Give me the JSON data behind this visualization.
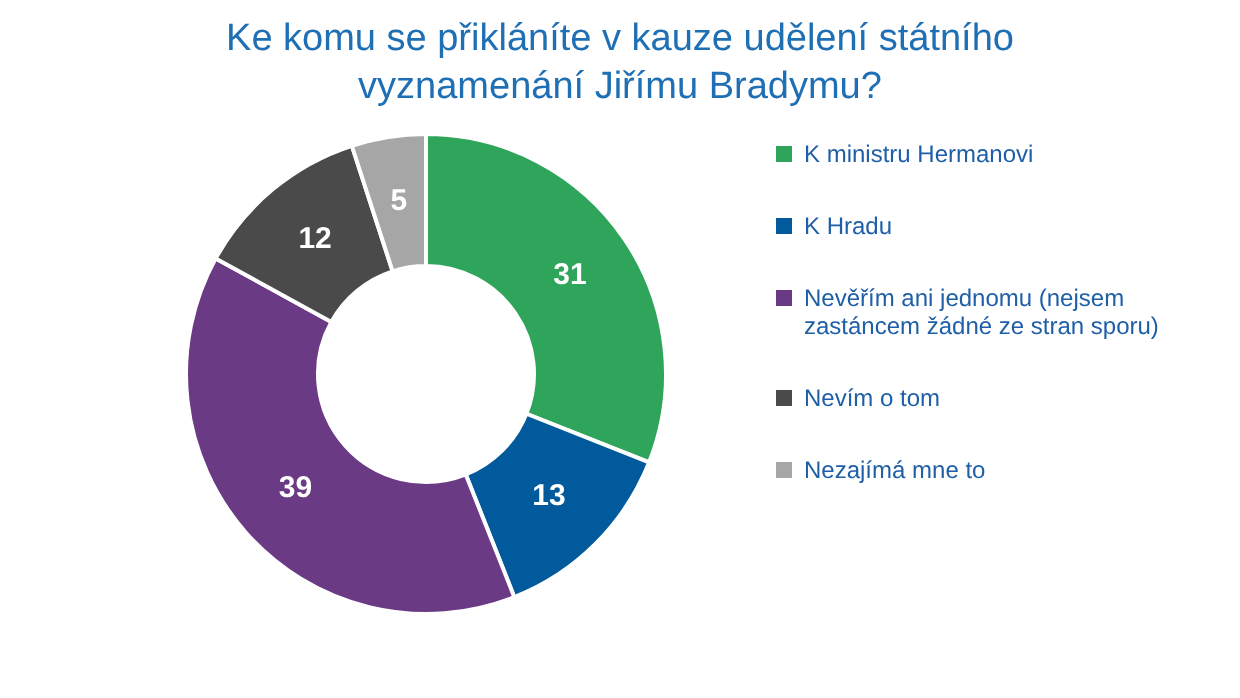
{
  "chart_data": {
    "type": "donut",
    "title": "Ke komu se přikláníte v kauze udělení státního vyznamenání Jiřímu Bradymu?",
    "categories": [
      "K ministru Hermanovi",
      "K Hradu",
      "Nevěřím ani jednomu (nejsem zastáncem žádné ze stran sporu)",
      "Nevím o tom",
      "Nezajímá mne to"
    ],
    "values": [
      31,
      13,
      39,
      12,
      5
    ],
    "colors": [
      "#2ea55a",
      "#005a9c",
      "#6b3a85",
      "#4a4a4a",
      "#a6a6a6"
    ],
    "data_labels": true,
    "legend": "right"
  }
}
